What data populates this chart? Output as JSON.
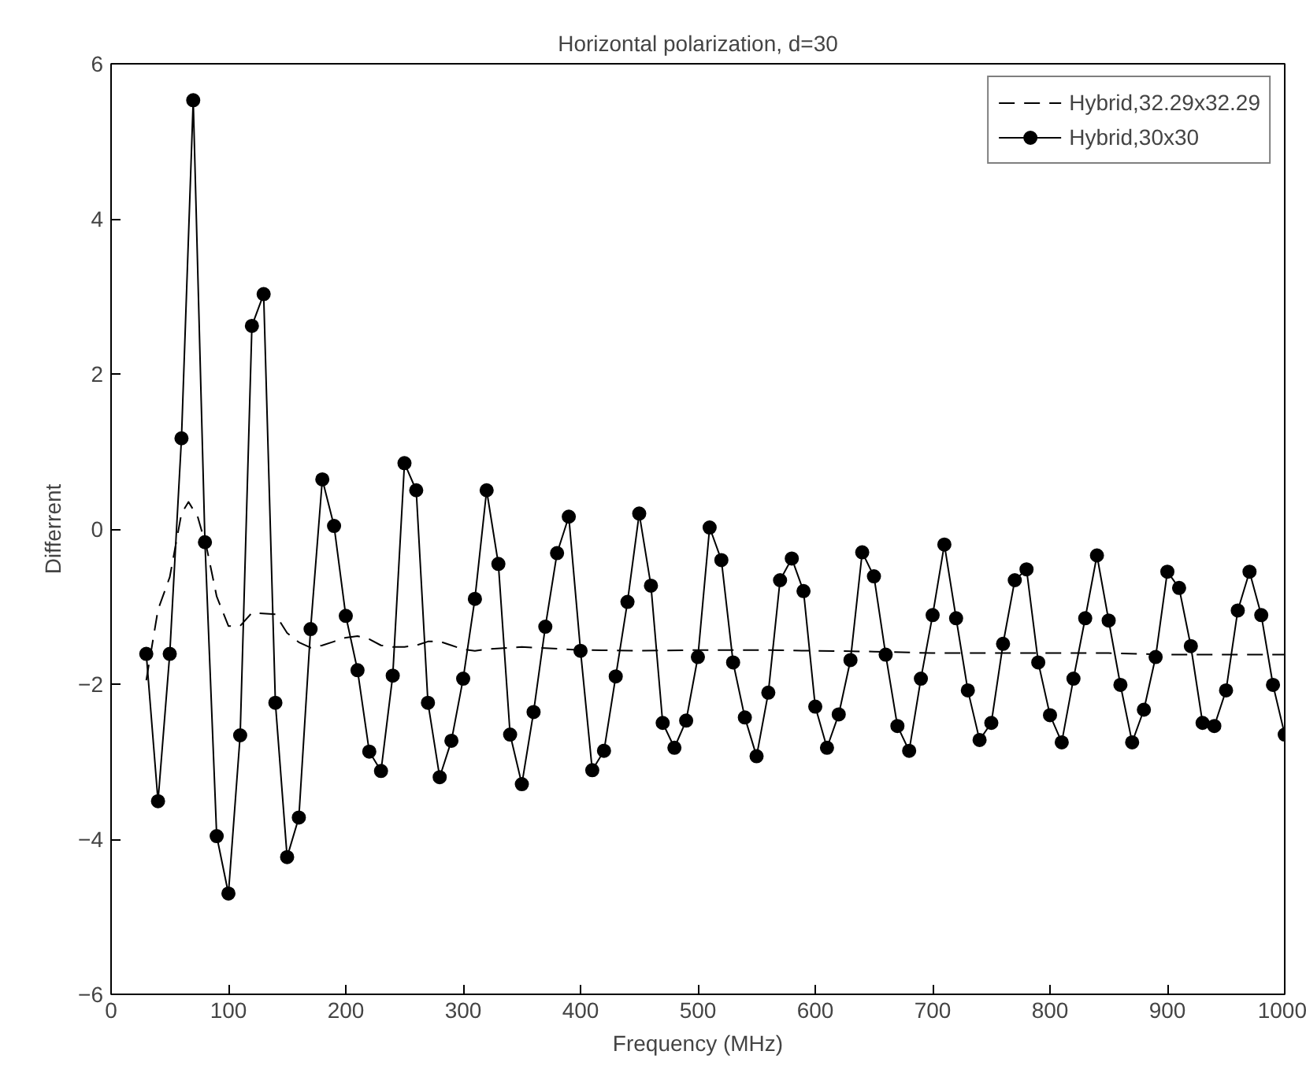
{
  "chart_data": {
    "type": "line",
    "title": "Horizontal polarization, d=30",
    "xlabel": "Frequency (MHz)",
    "ylabel": "Differrent",
    "xlim": [
      0,
      1000
    ],
    "xticks": [
      0,
      100,
      200,
      300,
      400,
      500,
      600,
      700,
      800,
      900,
      1000
    ],
    "ylim": [
      -6,
      6
    ],
    "yticks": [
      -6,
      -4,
      -2,
      0,
      2,
      4,
      6
    ],
    "grid": false,
    "legend": "top right",
    "series": [
      {
        "name": "Hybrid,32.29x32.29",
        "color": "#000000",
        "line_style": "dashed",
        "marker": "none",
        "x": [
          30,
          40,
          50,
          60,
          66,
          74,
          82,
          90,
          100,
          110,
          120,
          140,
          150,
          160,
          170,
          180,
          190,
          200,
          210,
          220,
          230,
          240,
          250,
          260,
          270,
          280,
          290,
          300,
          310,
          320,
          350,
          400,
          450,
          500,
          550,
          600,
          650,
          700,
          750,
          800,
          850,
          900,
          950,
          1000
        ],
        "values": [
          -1.95,
          -1.04,
          -0.62,
          0.2,
          0.35,
          0.15,
          -0.28,
          -0.87,
          -1.25,
          -1.25,
          -1.08,
          -1.1,
          -1.34,
          -1.46,
          -1.53,
          -1.5,
          -1.45,
          -1.4,
          -1.38,
          -1.42,
          -1.5,
          -1.52,
          -1.52,
          -1.5,
          -1.45,
          -1.45,
          -1.5,
          -1.55,
          -1.57,
          -1.55,
          -1.52,
          -1.56,
          -1.57,
          -1.56,
          -1.56,
          -1.57,
          -1.58,
          -1.6,
          -1.6,
          -1.6,
          -1.6,
          -1.62,
          -1.62,
          -1.62
        ]
      },
      {
        "name": "Hybrid,30x30",
        "color": "#000000",
        "line_style": "solid",
        "marker": "circle",
        "x": [
          30,
          40,
          50,
          60,
          70,
          80,
          90,
          100,
          110,
          120,
          130,
          140,
          150,
          160,
          170,
          180,
          190,
          200,
          210,
          220,
          230,
          240,
          250,
          260,
          270,
          280,
          290,
          300,
          310,
          320,
          330,
          340,
          350,
          360,
          370,
          380,
          390,
          400,
          410,
          420,
          430,
          440,
          450,
          460,
          470,
          480,
          490,
          500,
          510,
          520,
          530,
          540,
          550,
          560,
          570,
          580,
          590,
          600,
          610,
          620,
          630,
          640,
          650,
          660,
          670,
          680,
          690,
          700,
          710,
          720,
          730,
          740,
          750,
          760,
          770,
          780,
          790,
          800,
          810,
          820,
          830,
          840,
          850,
          860,
          870,
          880,
          890,
          900,
          910,
          920,
          930,
          940,
          950,
          960,
          970,
          980,
          990,
          1000
        ],
        "values": [
          -1.61,
          -3.51,
          -1.61,
          1.17,
          5.53,
          -0.17,
          -3.96,
          -4.7,
          -2.66,
          2.62,
          3.03,
          -2.24,
          -4.23,
          -3.72,
          -1.29,
          0.64,
          0.04,
          -1.12,
          -1.82,
          -2.87,
          -3.12,
          -1.89,
          0.85,
          0.5,
          -2.24,
          -3.2,
          -2.73,
          -1.93,
          -0.9,
          0.5,
          -0.45,
          -2.65,
          -3.29,
          -2.36,
          -1.26,
          -0.31,
          0.16,
          -1.57,
          -3.11,
          -2.86,
          -1.9,
          -0.94,
          0.2,
          -0.73,
          -2.5,
          -2.82,
          -2.47,
          -1.65,
          0.02,
          -0.4,
          -1.72,
          -2.43,
          -2.93,
          -2.11,
          -0.66,
          -0.38,
          -0.8,
          -2.29,
          -2.82,
          -2.39,
          -1.69,
          -0.3,
          -0.61,
          -1.62,
          -2.54,
          -2.86,
          -1.93,
          -1.11,
          -0.2,
          -1.15,
          -2.08,
          -2.72,
          -2.5,
          -1.48,
          -0.66,
          -0.52,
          -1.72,
          -2.4,
          -2.75,
          -1.93,
          -1.15,
          -0.34,
          -1.18,
          -2.01,
          -2.75,
          -2.33,
          -1.65,
          -0.55,
          -0.76,
          -1.51,
          -2.5,
          -2.54,
          -2.08,
          -1.05,
          -0.55,
          -1.11,
          -2.01,
          -2.65
        ]
      }
    ]
  }
}
